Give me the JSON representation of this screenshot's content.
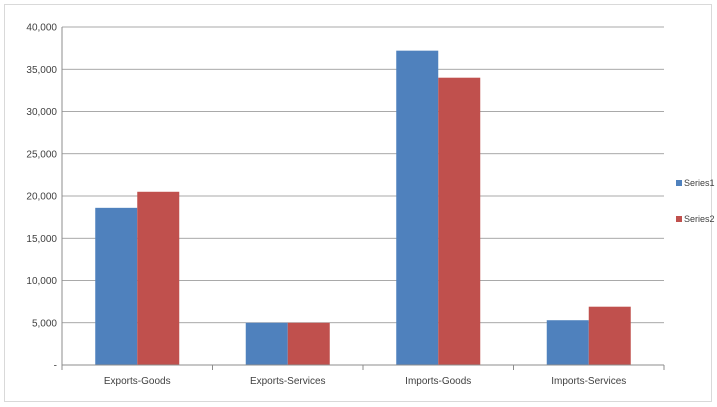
{
  "chart_data": {
    "type": "bar",
    "categories": [
      "Exports-Goods",
      "Exports-Services",
      "Imports-Goods",
      "Imports-Services"
    ],
    "series": [
      {
        "name": "Series1",
        "values": [
          18600,
          5000,
          37200,
          5300
        ],
        "color": "#4f81bd"
      },
      {
        "name": "Series2",
        "values": [
          20500,
          5000,
          34000,
          6900
        ],
        "color": "#c0504d"
      }
    ],
    "ylim": [
      0,
      40000
    ],
    "yticks": [
      0,
      5000,
      10000,
      15000,
      20000,
      25000,
      30000,
      35000,
      40000
    ],
    "ytick_labels": [
      "-",
      "5,000",
      "10,000",
      "15,000",
      "20,000",
      "25,000",
      "30,000",
      "35,000",
      "40,000"
    ],
    "grid": true,
    "legend": "right"
  }
}
